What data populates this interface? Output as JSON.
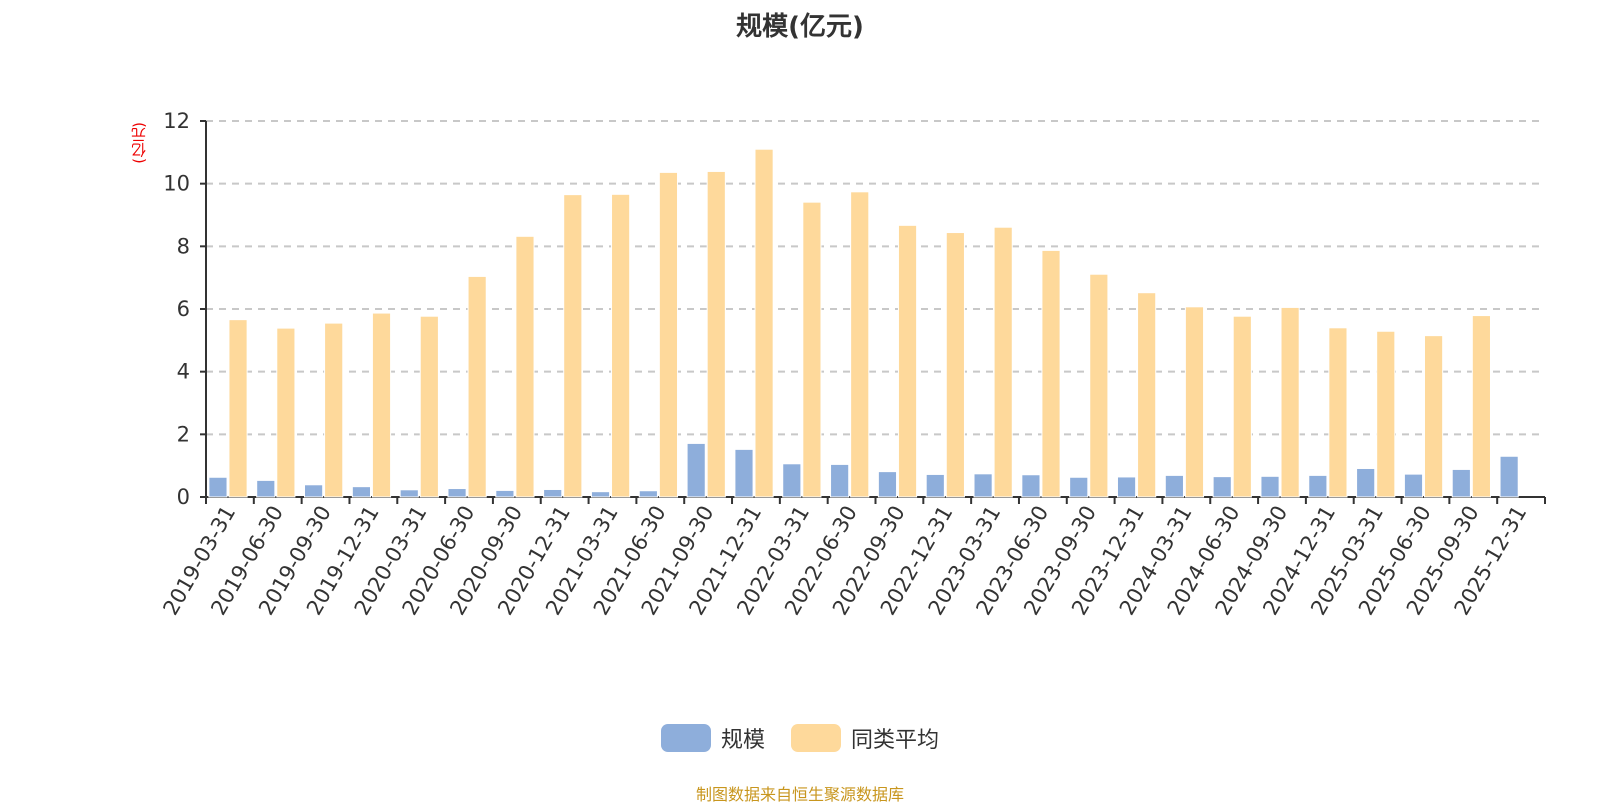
{
  "chart_data": {
    "type": "bar",
    "title": "规模(亿元)",
    "ylabel": "(亿元)",
    "xlabel": "",
    "ylim": [
      0,
      12
    ],
    "yticks": [
      0,
      2,
      4,
      6,
      8,
      10,
      12
    ],
    "grid": true,
    "legend_position": "bottom",
    "categories": [
      "2019-03-31",
      "2019-06-30",
      "2019-09-30",
      "2019-12-31",
      "2020-03-31",
      "2020-06-30",
      "2020-09-30",
      "2020-12-31",
      "2021-03-31",
      "2021-06-30",
      "2021-09-30",
      "2021-12-31",
      "2022-03-31",
      "2022-06-30",
      "2022-09-30",
      "2022-12-31",
      "2023-03-31",
      "2023-06-30",
      "2023-09-30",
      "2023-12-31",
      "2024-03-31",
      "2024-06-30",
      "2024-09-30",
      "2024-12-31",
      "2025-03-31",
      "2025-06-30",
      "2025-09-30",
      "2025-12-31"
    ],
    "series": [
      {
        "name": "规模",
        "color": "#8eaedb",
        "values": [
          0.63,
          0.53,
          0.39,
          0.33,
          0.23,
          0.27,
          0.21,
          0.24,
          0.17,
          0.2,
          1.71,
          1.52,
          1.06,
          1.04,
          0.81,
          0.72,
          0.74,
          0.71,
          0.63,
          0.64,
          0.69,
          0.65,
          0.66,
          0.69,
          0.91,
          0.73,
          0.88,
          1.3
        ]
      },
      {
        "name": "同类平均",
        "color": "#fed99b",
        "values": [
          5.66,
          5.39,
          5.55,
          5.87,
          5.77,
          7.04,
          8.32,
          9.65,
          9.66,
          10.36,
          10.39,
          11.1,
          9.41,
          9.74,
          8.67,
          8.44,
          8.61,
          7.87,
          7.11,
          6.52,
          6.07,
          5.77,
          6.05,
          5.4,
          5.29,
          5.15,
          5.79,
          null
        ]
      }
    ]
  },
  "source": "制图数据来自恒生聚源数据库"
}
